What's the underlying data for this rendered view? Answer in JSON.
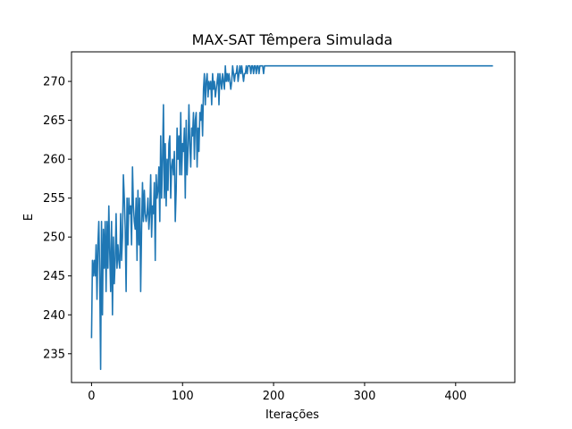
{
  "chart_data": {
    "type": "line",
    "title": "MAX-SAT Têmpera Simulada",
    "xlabel": "Iterações",
    "ylabel": "E",
    "xlim": [
      -22,
      465
    ],
    "ylim": [
      231.3,
      273.8
    ],
    "xticks": [
      0,
      100,
      200,
      300,
      400
    ],
    "yticks": [
      235,
      240,
      245,
      250,
      255,
      260,
      265,
      270
    ],
    "grid": false,
    "legend": "none",
    "series": [
      {
        "color": "#1f77b4",
        "x": [
          0,
          1,
          2,
          3,
          4,
          5,
          6,
          7,
          8,
          9,
          10,
          11,
          12,
          13,
          14,
          15,
          16,
          17,
          18,
          19,
          20,
          21,
          22,
          23,
          24,
          25,
          26,
          27,
          28,
          29,
          30,
          31,
          32,
          33,
          34,
          35,
          36,
          37,
          38,
          39,
          40,
          41,
          42,
          43,
          44,
          45,
          46,
          47,
          48,
          49,
          50,
          51,
          52,
          53,
          54,
          55,
          56,
          57,
          58,
          59,
          60,
          61,
          62,
          63,
          64,
          65,
          66,
          67,
          68,
          69,
          70,
          71,
          72,
          73,
          74,
          75,
          76,
          77,
          78,
          79,
          80,
          81,
          82,
          83,
          84,
          85,
          86,
          87,
          88,
          89,
          90,
          91,
          92,
          93,
          94,
          95,
          96,
          97,
          98,
          99,
          100,
          101,
          102,
          103,
          104,
          105,
          106,
          107,
          108,
          109,
          110,
          111,
          112,
          113,
          114,
          115,
          116,
          117,
          118,
          119,
          120,
          121,
          122,
          123,
          124,
          125,
          126,
          127,
          128,
          129,
          130,
          131,
          132,
          133,
          134,
          135,
          136,
          137,
          138,
          139,
          140,
          141,
          142,
          143,
          144,
          145,
          146,
          147,
          148,
          149,
          150,
          151,
          152,
          153,
          154,
          155,
          156,
          157,
          158,
          159,
          160,
          161,
          162,
          163,
          164,
          165,
          166,
          167,
          168,
          169,
          170,
          171,
          172,
          173,
          174,
          175,
          176,
          177,
          178,
          179,
          180,
          181,
          182,
          183,
          184,
          185,
          186,
          187,
          188,
          189,
          190,
          191,
          192,
          193,
          194,
          195,
          196,
          197,
          198,
          199,
          200,
          441
        ],
        "values": [
          237,
          247,
          245,
          247,
          245,
          249,
          242,
          249,
          252,
          245,
          233,
          252,
          240,
          251,
          246,
          252,
          243,
          252,
          246,
          254,
          248,
          243,
          252,
          240,
          250,
          244,
          247,
          253,
          246,
          249,
          247,
          246,
          253,
          247,
          250,
          258,
          255,
          251,
          243,
          255,
          249,
          255,
          253,
          254,
          249,
          259,
          254,
          252,
          251,
          255,
          247,
          256,
          249,
          255,
          243,
          251,
          257,
          252,
          256,
          253,
          252,
          253,
          255,
          251,
          253,
          258,
          250,
          254,
          253,
          257,
          247,
          258,
          255,
          256,
          259,
          252,
          263,
          255,
          260,
          267,
          255,
          262,
          254,
          260,
          256,
          262,
          263,
          255,
          259,
          260,
          258,
          261,
          252,
          256,
          264,
          260,
          263,
          258,
          266,
          258,
          262,
          261,
          264,
          255,
          265,
          258,
          261,
          267,
          262,
          259,
          264,
          263,
          266,
          260,
          265,
          266,
          259,
          264,
          261,
          266,
          265,
          267,
          263,
          269,
          271,
          267,
          270,
          271,
          268,
          270,
          269,
          270,
          267,
          271,
          269,
          270,
          268,
          269,
          270,
          271,
          267,
          271,
          270,
          269,
          271,
          270,
          269,
          272,
          270,
          271,
          270,
          271,
          270,
          269,
          270,
          272,
          271,
          270,
          271,
          271,
          272,
          270,
          271,
          272,
          271,
          272,
          271,
          270,
          271,
          271,
          272,
          271,
          272,
          272,
          272,
          271,
          272,
          272,
          271,
          272,
          272,
          271,
          272,
          272,
          271,
          272,
          272,
          272,
          272,
          271,
          272,
          272,
          272,
          272,
          272,
          272,
          272,
          272,
          272,
          272,
          272,
          272
        ]
      }
    ]
  }
}
